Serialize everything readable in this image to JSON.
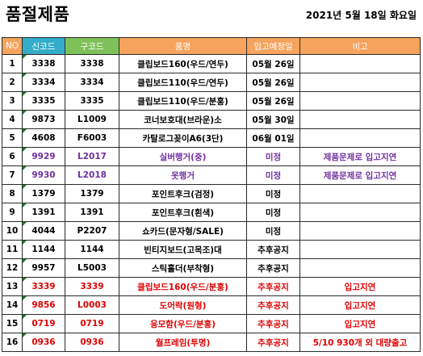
{
  "title": "품절제품",
  "date": "2021년 5월 18일 화요일",
  "columns": {
    "no": "NO",
    "new_code": "신코드",
    "old_code": "구코드",
    "name": "품명",
    "eta": "입고예정일",
    "note": "비고"
  },
  "colors": {
    "header_orange": "#f6a35d",
    "header_blue": "#33adc9",
    "header_green": "#7ec15a",
    "purple_text": "#7030a0",
    "red_text": "#e00000"
  },
  "rows": [
    {
      "no": "1",
      "new_code": "3338",
      "old_code": "3338",
      "name": "클립보드160(우드/연두)",
      "eta": "05월 26일",
      "note": "",
      "style": "normal"
    },
    {
      "no": "2",
      "new_code": "3334",
      "old_code": "3334",
      "name": "클립보드110(우드/연두)",
      "eta": "05월 26일",
      "note": "",
      "style": "normal"
    },
    {
      "no": "3",
      "new_code": "3335",
      "old_code": "3335",
      "name": "클립보드110(우드/분홍)",
      "eta": "05월 26일",
      "note": "",
      "style": "normal"
    },
    {
      "no": "4",
      "new_code": "9873",
      "old_code": "L1009",
      "name": "코너보호대(브라운)소",
      "eta": "05월 30일",
      "note": "",
      "style": "normal"
    },
    {
      "no": "5",
      "new_code": "4608",
      "old_code": "F6003",
      "name": "카탈로그꽂이A6(3단)",
      "eta": "06월 01일",
      "note": "",
      "style": "normal"
    },
    {
      "no": "6",
      "new_code": "9929",
      "old_code": "L2017",
      "name": "실버행거(중)",
      "eta": "미정",
      "note": "제품문제로 입고지연",
      "style": "purple"
    },
    {
      "no": "7",
      "new_code": "9930",
      "old_code": "L2018",
      "name": "못행거",
      "eta": "미정",
      "note": "제품문제로 입고지연",
      "style": "purple"
    },
    {
      "no": "8",
      "new_code": "1379",
      "old_code": "1379",
      "name": "포인트후크(검정)",
      "eta": "미정",
      "note": "",
      "style": "normal"
    },
    {
      "no": "9",
      "new_code": "1391",
      "old_code": "1391",
      "name": "포인트후크(흰색)",
      "eta": "미정",
      "note": "",
      "style": "normal"
    },
    {
      "no": "10",
      "new_code": "4044",
      "old_code": "P2207",
      "name": "쇼카드(문자형/SALE)",
      "eta": "미정",
      "note": "",
      "style": "normal"
    },
    {
      "no": "11",
      "new_code": "1144",
      "old_code": "1144",
      "name": "빈티지보드(고목조)대",
      "eta": "추후공지",
      "note": "",
      "style": "normal"
    },
    {
      "no": "12",
      "new_code": "9957",
      "old_code": "L5003",
      "name": "스틱홀더(부착형)",
      "eta": "추후공지",
      "note": "",
      "style": "normal"
    },
    {
      "no": "13",
      "new_code": "3339",
      "old_code": "3339",
      "name": "클립보드160(우드/분홍)",
      "eta": "추후공지",
      "note": "입고지연",
      "style": "red"
    },
    {
      "no": "14",
      "new_code": "9856",
      "old_code": "L0003",
      "name": "도어락(원형)",
      "eta": "추후공지",
      "note": "입고지연",
      "style": "red"
    },
    {
      "no": "15",
      "new_code": "0719",
      "old_code": "0719",
      "name": "응모함(우드/분홍)",
      "eta": "추후공지",
      "note": "입고지연",
      "style": "red"
    },
    {
      "no": "16",
      "new_code": "0936",
      "old_code": "0936",
      "name": "월프레임(투명)",
      "eta": "추후공지",
      "note": "5/10 930개 외 대량출고",
      "style": "red"
    }
  ]
}
